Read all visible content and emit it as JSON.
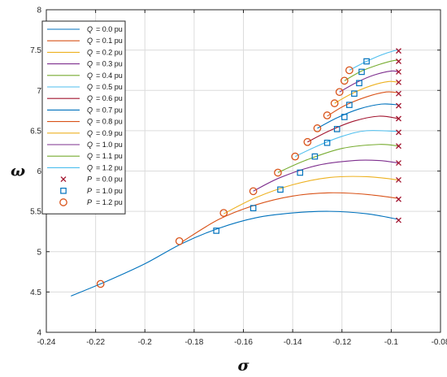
{
  "chart_data": {
    "type": "line",
    "title": "",
    "xlabel": "σ",
    "ylabel": "ω",
    "xlim": [
      -0.24,
      -0.08
    ],
    "ylim": [
      4,
      8
    ],
    "xticks": [
      "-0.24",
      "-0.22",
      "-0.2",
      "-0.18",
      "-0.16",
      "-0.14",
      "-0.12",
      "-0.1",
      "-0.08"
    ],
    "yticks": [
      "4",
      "4.5",
      "5",
      "5.5",
      "6",
      "6.5",
      "7",
      "7.5",
      "8"
    ],
    "grid": true,
    "legend_position": "top-left",
    "series": [
      {
        "name": "Q",
        "suffix": "= 0.0 pu",
        "color": "#0072BD",
        "x": [
          -0.23,
          -0.215,
          -0.2,
          -0.185,
          -0.17,
          -0.155,
          -0.14,
          -0.125,
          -0.11,
          -0.097
        ],
        "y": [
          4.45,
          4.64,
          4.85,
          5.1,
          5.29,
          5.42,
          5.48,
          5.5,
          5.47,
          5.4
        ]
      },
      {
        "name": "Q",
        "suffix": "= 0.1 pu",
        "color": "#D95319",
        "x": [
          -0.185,
          -0.17,
          -0.155,
          -0.14,
          -0.125,
          -0.11,
          -0.097
        ],
        "y": [
          5.12,
          5.4,
          5.58,
          5.69,
          5.73,
          5.71,
          5.66
        ]
      },
      {
        "name": "Q",
        "suffix": "= 0.2 pu",
        "color": "#EDB120",
        "x": [
          -0.168,
          -0.155,
          -0.14,
          -0.125,
          -0.11,
          -0.097
        ],
        "y": [
          5.47,
          5.67,
          5.83,
          5.92,
          5.93,
          5.89
        ]
      },
      {
        "name": "Q",
        "suffix": "= 0.3 pu",
        "color": "#7E2F8E",
        "x": [
          -0.156,
          -0.145,
          -0.13,
          -0.115,
          -0.105,
          -0.097
        ],
        "y": [
          5.75,
          5.92,
          6.07,
          6.13,
          6.13,
          6.1
        ]
      },
      {
        "name": "Q",
        "suffix": "= 0.4 pu",
        "color": "#77AC30",
        "x": [
          -0.146,
          -0.135,
          -0.12,
          -0.105,
          -0.097
        ],
        "y": [
          5.98,
          6.13,
          6.28,
          6.33,
          6.31
        ]
      },
      {
        "name": "Q",
        "suffix": "= 0.5 pu",
        "color": "#4DBEEE",
        "x": [
          -0.139,
          -0.13,
          -0.12,
          -0.11,
          -0.097
        ],
        "y": [
          6.18,
          6.31,
          6.43,
          6.5,
          6.49
        ]
      },
      {
        "name": "Q",
        "suffix": "= 0.6 pu",
        "color": "#A2142F",
        "x": [
          -0.134,
          -0.125,
          -0.115,
          -0.105,
          -0.097
        ],
        "y": [
          6.36,
          6.5,
          6.62,
          6.68,
          6.65
        ]
      },
      {
        "name": "Q",
        "suffix": "= 0.7 pu",
        "color": "#0072BD",
        "x": [
          -0.13,
          -0.122,
          -0.113,
          -0.104,
          -0.097
        ],
        "y": [
          6.53,
          6.66,
          6.77,
          6.83,
          6.82
        ]
      },
      {
        "name": "Q",
        "suffix": "= 0.8 pu",
        "color": "#D95319",
        "x": [
          -0.126,
          -0.119,
          -0.11,
          -0.102,
          -0.097
        ],
        "y": [
          6.68,
          6.81,
          6.92,
          6.98,
          6.97
        ]
      },
      {
        "name": "Q",
        "suffix": "= 0.9 pu",
        "color": "#EDB120",
        "x": [
          -0.123,
          -0.116,
          -0.108,
          -0.101,
          -0.097
        ],
        "y": [
          6.84,
          6.96,
          7.06,
          7.11,
          7.1
        ]
      },
      {
        "name": "Q",
        "suffix": "= 1.0 pu",
        "color": "#7E2F8E",
        "x": [
          -0.121,
          -0.114,
          -0.107,
          -0.1,
          -0.097
        ],
        "y": [
          6.98,
          7.1,
          7.19,
          7.24,
          7.23
        ]
      },
      {
        "name": "Q",
        "suffix": "= 1.1 pu",
        "color": "#77AC30",
        "x": [
          -0.119,
          -0.112,
          -0.105,
          -0.099,
          -0.097
        ],
        "y": [
          7.12,
          7.24,
          7.32,
          7.37,
          7.37
        ]
      },
      {
        "name": "Q",
        "suffix": "= 1.2 pu",
        "color": "#4DBEEE",
        "x": [
          -0.117,
          -0.11,
          -0.104,
          -0.099,
          -0.097
        ],
        "y": [
          7.25,
          7.36,
          7.44,
          7.49,
          7.5
        ]
      }
    ],
    "markers": [
      {
        "name": "P",
        "suffix": "= 0.0 pu",
        "symbol": "x",
        "color": "#A2142F",
        "x": [
          -0.097,
          -0.097,
          -0.097,
          -0.097,
          -0.097,
          -0.097,
          -0.097,
          -0.097,
          -0.097,
          -0.097,
          -0.097,
          -0.097,
          -0.097
        ],
        "y": [
          5.39,
          5.65,
          5.89,
          6.1,
          6.31,
          6.48,
          6.65,
          6.81,
          6.96,
          7.1,
          7.23,
          7.36,
          7.49
        ]
      },
      {
        "name": "P",
        "suffix": "= 1.0 pu",
        "symbol": "square",
        "color": "#0072BD",
        "x": [
          -0.171,
          -0.156,
          -0.145,
          -0.137,
          -0.131,
          -0.126,
          -0.122,
          -0.119,
          -0.117,
          -0.115,
          -0.113,
          -0.112,
          -0.11
        ],
        "y": [
          5.26,
          5.54,
          5.77,
          5.98,
          6.18,
          6.35,
          6.52,
          6.67,
          6.82,
          6.96,
          7.09,
          7.23,
          7.36
        ]
      },
      {
        "name": "P",
        "suffix": "= 1.2 pu",
        "symbol": "circle",
        "color": "#D95319",
        "x": [
          -0.218,
          -0.186,
          -0.168,
          -0.156,
          -0.146,
          -0.139,
          -0.134,
          -0.13,
          -0.126,
          -0.123,
          -0.121,
          -0.119,
          -0.117
        ],
        "y": [
          4.6,
          5.13,
          5.48,
          5.75,
          5.98,
          6.18,
          6.36,
          6.53,
          6.69,
          6.84,
          6.98,
          7.12,
          7.25
        ]
      }
    ]
  }
}
